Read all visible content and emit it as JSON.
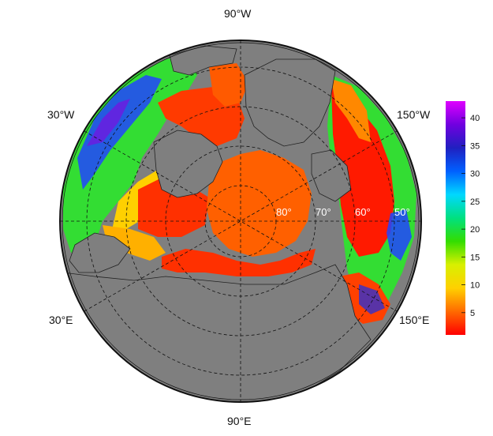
{
  "map": {
    "projection": "north-polar stereographic",
    "background_color": "#7f7f7f",
    "graticule_style": "dashed",
    "longitude_labels": [
      {
        "text": "90°W",
        "pos": "top"
      },
      {
        "text": "30°W",
        "pos": "upper-left"
      },
      {
        "text": "150°W",
        "pos": "upper-right"
      },
      {
        "text": "30°E",
        "pos": "lower-left"
      },
      {
        "text": "150°E",
        "pos": "lower-right"
      },
      {
        "text": "90°E",
        "pos": "bottom"
      }
    ],
    "latitude_labels": [
      "80°",
      "70°",
      "60°",
      "50°"
    ],
    "field_description_colors": {
      "polar_cap": "#ff6000",
      "coastal_low": "#ff1a00",
      "atlantic_high": "#2244ff",
      "pacific_mid": "#33dd33"
    }
  },
  "colorbar": {
    "ticks": [
      "40",
      "35",
      "30",
      "25",
      "20",
      "15",
      "10",
      "5"
    ],
    "tick_values": [
      40,
      35,
      30,
      25,
      20,
      15,
      10,
      5
    ],
    "min": 1,
    "max": 43,
    "colors": [
      "#ff0000",
      "#ff6a00",
      "#ffd000",
      "#d8f000",
      "#33dd00",
      "#00e080",
      "#00d8ff",
      "#0060ff",
      "#2020c0",
      "#7000e0",
      "#e000ff"
    ]
  }
}
